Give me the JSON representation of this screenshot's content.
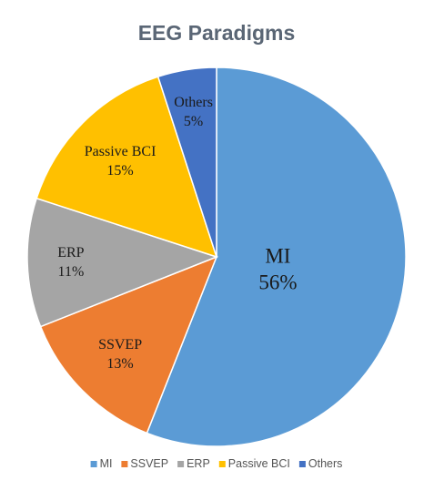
{
  "chart_data": {
    "type": "pie",
    "title": "EEG Paradigms",
    "legend_position": "bottom",
    "start_angle_deg": 0,
    "direction": "clockwise",
    "slices": [
      {
        "name": "MI",
        "value": 56,
        "label": "56%",
        "color": "#5b9bd5"
      },
      {
        "name": "SSVEP",
        "value": 13,
        "label": "13%",
        "color": "#ed7d31"
      },
      {
        "name": "ERP",
        "value": 11,
        "label": "11%",
        "color": "#a5a5a5"
      },
      {
        "name": "Passive BCI",
        "value": 15,
        "label": "15%",
        "color": "#ffc000"
      },
      {
        "name": "Others",
        "value": 5,
        "label": "5%",
        "color": "#4472c4"
      }
    ]
  }
}
